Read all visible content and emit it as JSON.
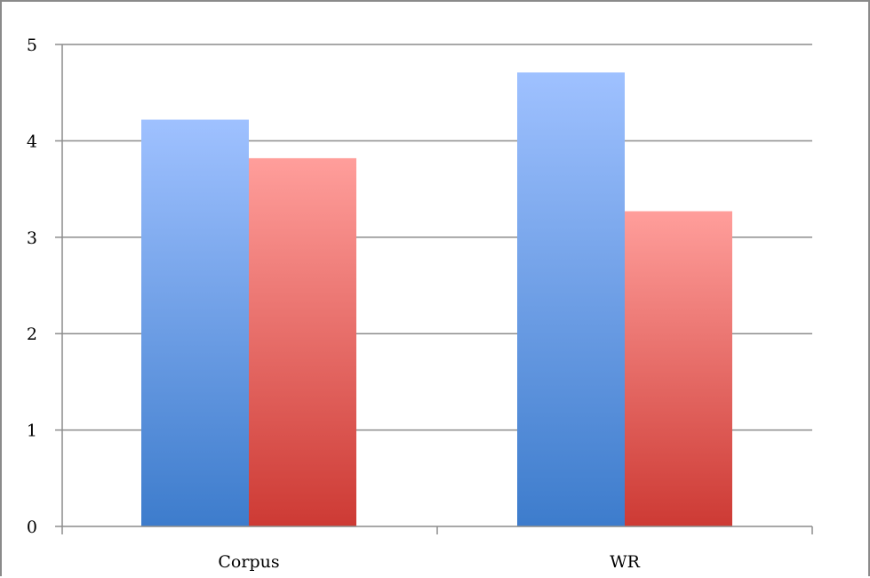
{
  "chart_data": {
    "type": "bar",
    "categories": [
      "Corpus",
      "WR"
    ],
    "series": [
      {
        "values": [
          4.22,
          4.71
        ],
        "color_top": "#9fc1ff",
        "color_bottom": "#3d7ccc"
      },
      {
        "values": [
          3.82,
          3.27
        ],
        "color_top": "#ff9e9b",
        "color_bottom": "#cd3a34"
      }
    ],
    "ylim": [
      0,
      5
    ],
    "yticks": [
      "0",
      "1",
      "2",
      "3",
      "4",
      "5"
    ],
    "grid": true,
    "legend": "none",
    "title": "",
    "xlabel": "",
    "ylabel": ""
  }
}
